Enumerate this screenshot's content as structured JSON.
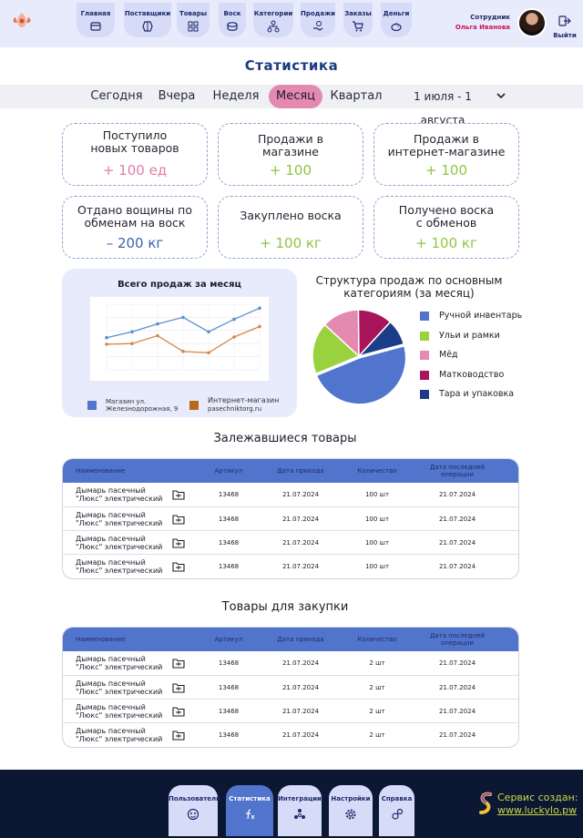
{
  "header": {
    "nav": [
      {
        "label": "Главная",
        "icon": "box-icon"
      },
      {
        "label": "Поставщики",
        "icon": "honeycomb-icon"
      },
      {
        "label": "Товары",
        "icon": "grid-icon"
      },
      {
        "label": "Воск",
        "icon": "wax-icon"
      },
      {
        "label": "Категории",
        "icon": "hierarchy-icon"
      },
      {
        "label": "Продажи",
        "icon": "hand-coin-icon"
      },
      {
        "label": "Заказы",
        "icon": "cart-icon"
      },
      {
        "label": "Деньги",
        "icon": "piggy-bank-icon"
      }
    ],
    "user_role": "Сотрудник",
    "user_name": "Ольга Иванова",
    "logout_label": "Выйти"
  },
  "page_title": "Статистика",
  "periods": [
    "Сегодня",
    "Вчера",
    "Неделя",
    "Месяц",
    "Квартал",
    "1 июля - 1 августа"
  ],
  "active_period": "Месяц",
  "cards": [
    {
      "title": "Поступило\nновых товаров",
      "value": "+ 100 ед",
      "color": "#e07da6"
    },
    {
      "title": "Продажи в\nмагазине",
      "value": "+ 100",
      "color": "#8ec63f"
    },
    {
      "title": "Продажи в\nинтернет-магазине",
      "value": "+ 100",
      "color": "#8ec63f"
    },
    {
      "title": "Отдано вощины по\nобменам на воск",
      "value": "– 200 кг",
      "color": "#3d62ad"
    },
    {
      "title": "Закуплено воска",
      "value": "+ 100 кг",
      "color": "#8ec63f"
    },
    {
      "title": "Получено воска\nс обменов",
      "value": "+ 100 кг",
      "color": "#8ec63f"
    }
  ],
  "chart_data": [
    {
      "type": "line",
      "title": "Всего продаж за месяц",
      "x": [
        1,
        2,
        3,
        4,
        5,
        6,
        7
      ],
      "ylim": [
        0,
        10
      ],
      "grid": true,
      "legend_position": "bottom",
      "series": [
        {
          "name": "Магазин ул. Железнодорожная, 9",
          "color": "#5b8fd0",
          "values": [
            4.9,
            5.8,
            7.0,
            8.0,
            5.8,
            7.7,
            9.4
          ]
        },
        {
          "name": "Интернет-магазин pasechnikторг.ru",
          "color": "#d5874a",
          "values": [
            3.9,
            4.0,
            5.2,
            2.8,
            2.6,
            5.0,
            6.6
          ]
        }
      ]
    },
    {
      "type": "pie",
      "title": "Структура продаж по основным категориям (за месяц)",
      "legend_position": "right",
      "categories": [
        "Ручной инвентарь",
        "Ульи и рамки",
        "Мёд",
        "Матководство",
        "Тара и упаковка"
      ],
      "values": [
        48,
        18,
        13,
        12,
        9
      ],
      "colors": [
        "#5174cc",
        "#9ad13f",
        "#e48ab0",
        "#a8155a",
        "#1c3e8a"
      ]
    }
  ],
  "legend1": {
    "store_line1": "Магазин ул.",
    "store_line2": "Железнодорожная, 9",
    "online_line1": "Интернет-магазин",
    "online_line2": "pasechniktorg.ru"
  },
  "stale_title": "Залежавшиеся товары",
  "purchase_title": "Товары для закупки",
  "table_headers": {
    "name": "Наименование",
    "article": "Артикул",
    "arrival": "Дата прихода",
    "qty": "Количество",
    "last_op_1": "Дата последней",
    "last_op_2": "операции"
  },
  "stale_rows": [
    {
      "name1": "Дымарь пасечный",
      "name2": "\"Люкс\" электрический",
      "article": "13468",
      "arrival": "21.07.2024",
      "qty": "100 шт",
      "last_op": "21.07.2024"
    },
    {
      "name1": "Дымарь пасечный",
      "name2": "\"Люкс\" электрический",
      "article": "13468",
      "arrival": "21.07.2024",
      "qty": "100 шт",
      "last_op": "21.07.2024"
    },
    {
      "name1": "Дымарь пасечный",
      "name2": "\"Люкс\" электрический",
      "article": "13468",
      "arrival": "21.07.2024",
      "qty": "100 шт",
      "last_op": "21.07.2024"
    },
    {
      "name1": "Дымарь пасечный",
      "name2": "\"Люкс\" электрический",
      "article": "13468",
      "arrival": "21.07.2024",
      "qty": "100 шт",
      "last_op": "21.07.2024"
    }
  ],
  "purchase_rows": [
    {
      "name1": "Дымарь пасечный",
      "name2": "\"Люкс\" электрический",
      "article": "13468",
      "arrival": "21.07.2024",
      "qty": "2 шт",
      "last_op": "21.07.2024"
    },
    {
      "name1": "Дымарь пасечный",
      "name2": "\"Люкс\" электрический",
      "article": "13468",
      "arrival": "21.07.2024",
      "qty": "2 шт",
      "last_op": "21.07.2024"
    },
    {
      "name1": "Дымарь пасечный",
      "name2": "\"Люкс\" электрический",
      "article": "13468",
      "arrival": "21.07.2024",
      "qty": "2 шт",
      "last_op": "21.07.2024"
    },
    {
      "name1": "Дымарь пасечный",
      "name2": "\"Люкс\" электрический",
      "article": "13468",
      "arrival": "21.07.2024",
      "qty": "2 шт",
      "last_op": "21.07.2024"
    }
  ],
  "footer": {
    "nav": [
      {
        "label": "Пользователи",
        "icon": "users-icon"
      },
      {
        "label": "Статистика",
        "icon": "function-icon"
      },
      {
        "label": "Интеграции",
        "icon": "integrations-icon"
      },
      {
        "label": "Настройки",
        "icon": "gear-icon"
      },
      {
        "label": "Справка",
        "icon": "help-icon"
      }
    ],
    "active": "Статистика",
    "brand_line1": "Сервис создан:",
    "brand_url": "www.luckylo.pw"
  }
}
